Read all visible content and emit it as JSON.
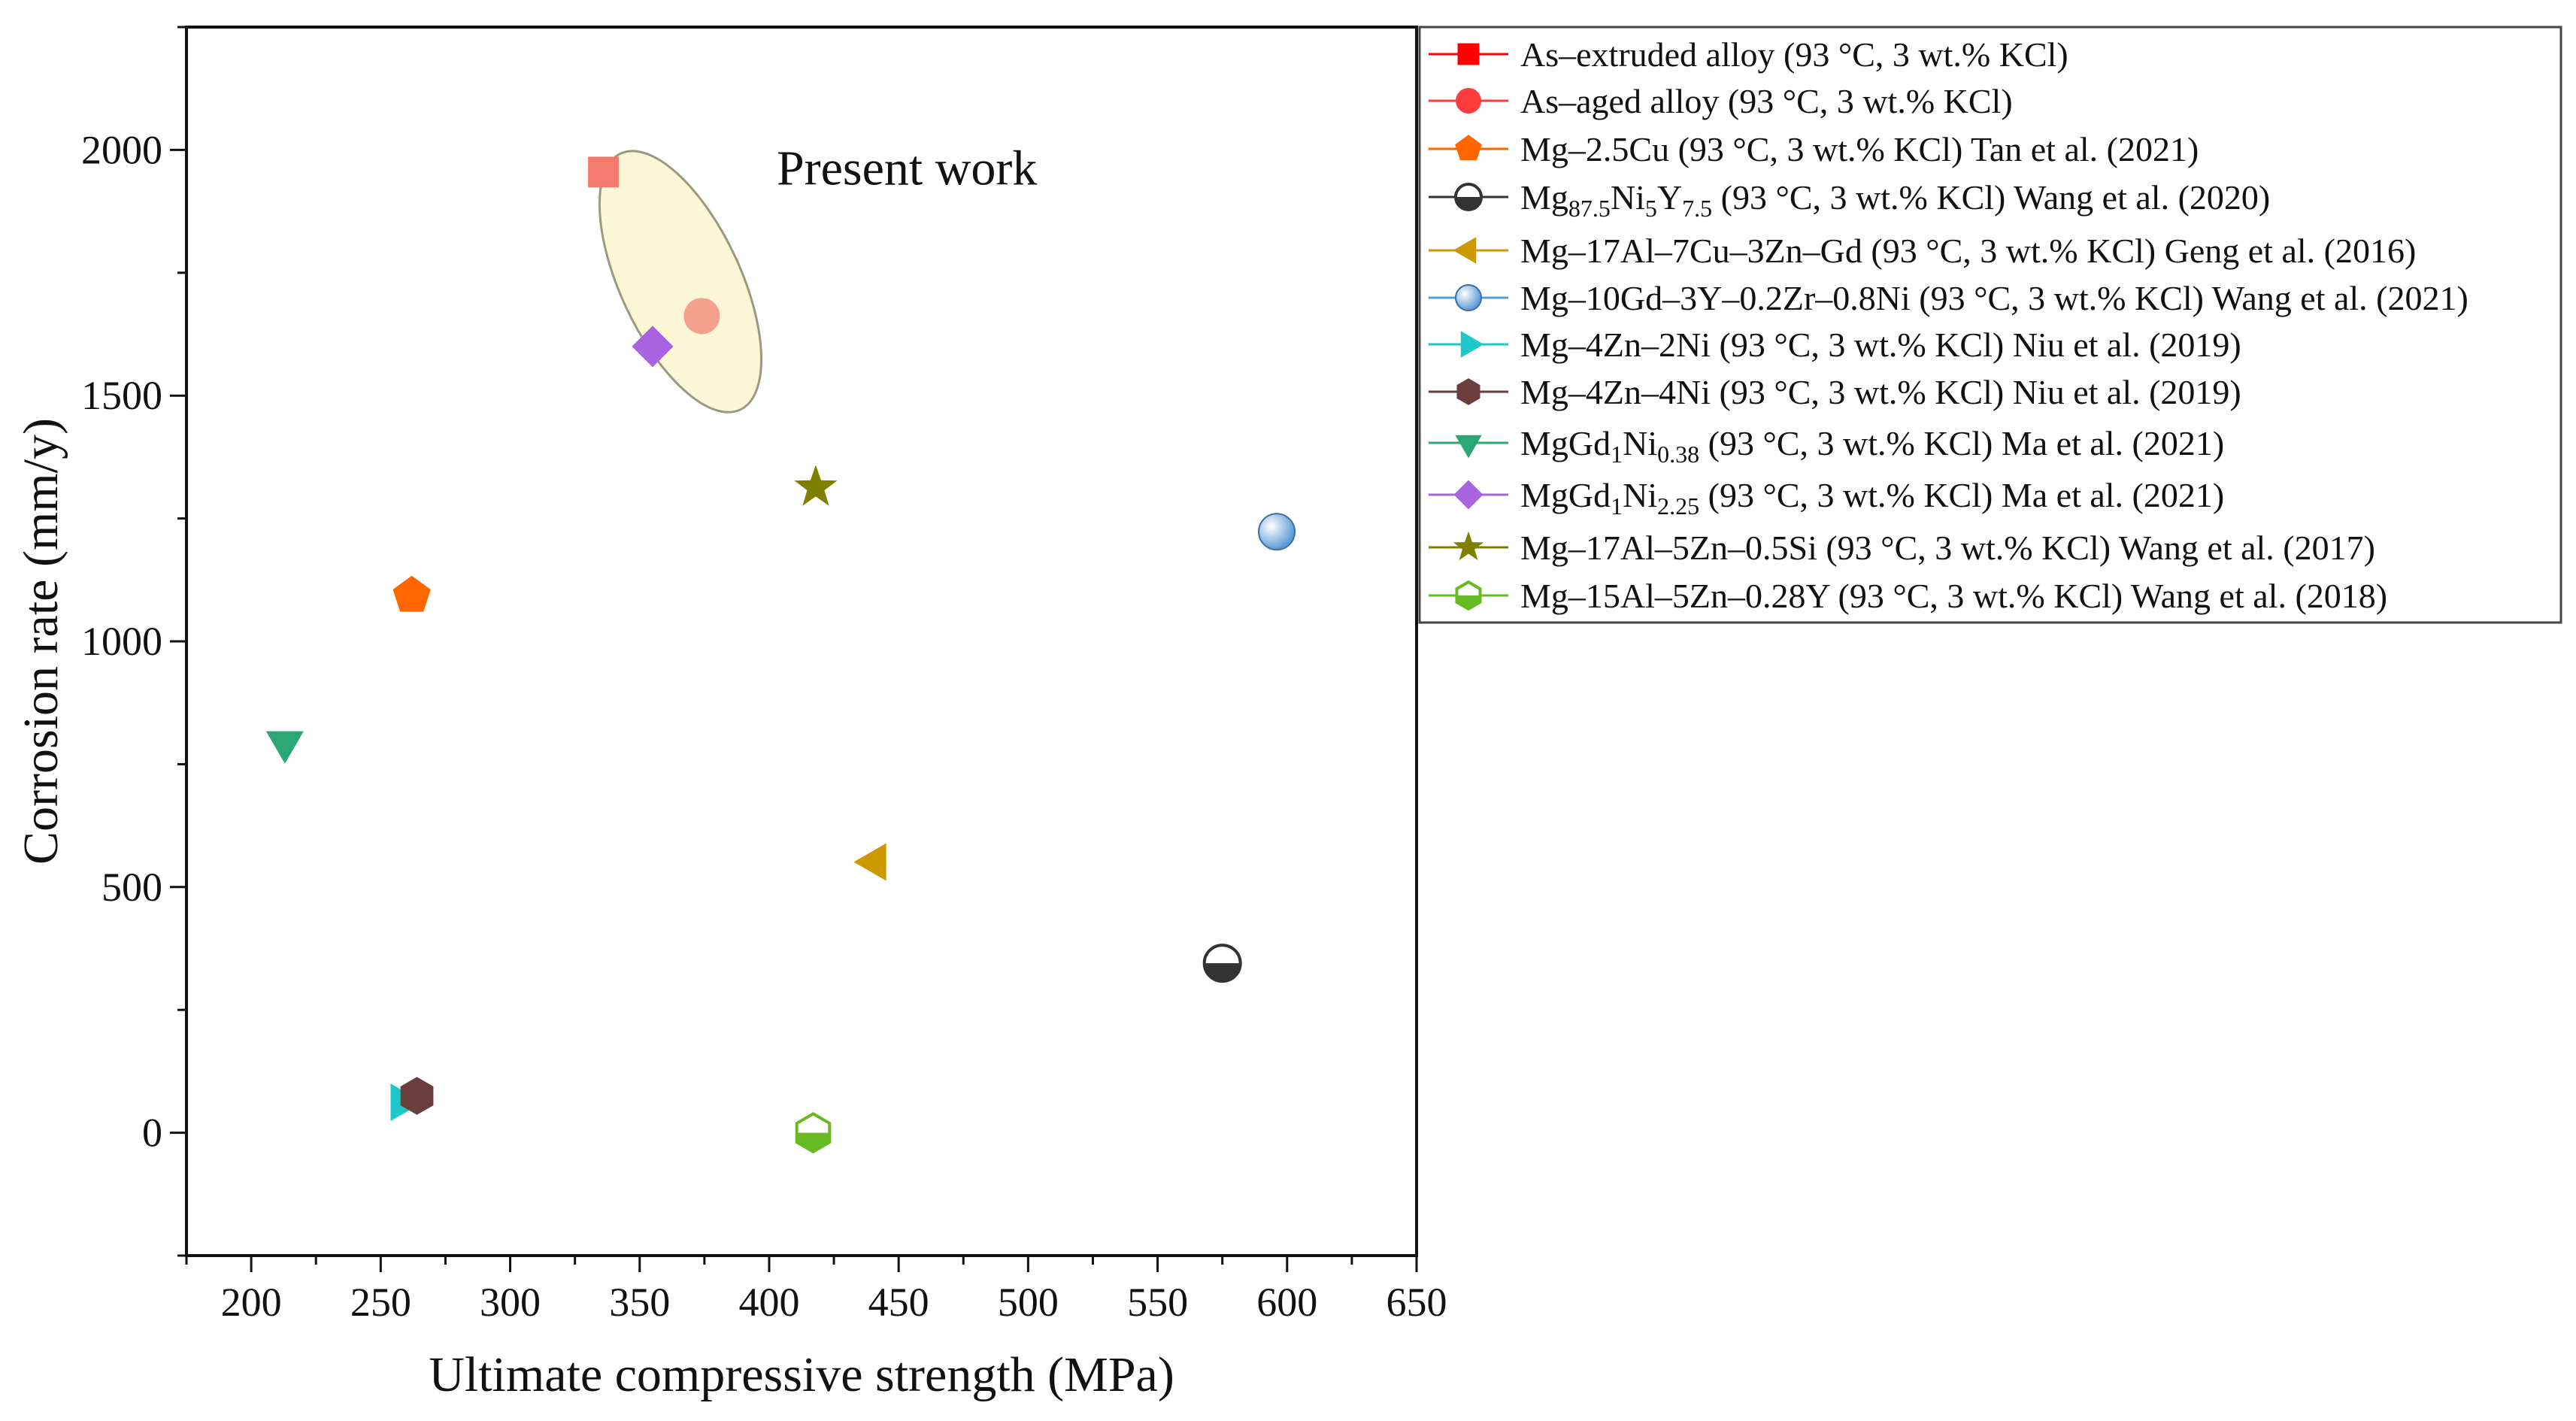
{
  "chart_data": {
    "type": "scatter",
    "title": "",
    "xlabel": "Ultimate compressive strength (MPa)",
    "ylabel": "Corrosion rate (mm/y)",
    "xlim": [
      175,
      650
    ],
    "ylim": [
      -250,
      2250
    ],
    "x_ticks": [
      "200",
      "250",
      "300",
      "350",
      "400",
      "450",
      "500",
      "550",
      "600",
      "650"
    ],
    "y_ticks": [
      "0",
      "500",
      "1000",
      "1500",
      "2000"
    ],
    "grid": false,
    "legend_position": "outside-right-top",
    "annotation": {
      "text": "Present work",
      "x": 400,
      "y": 1960
    },
    "series": [
      {
        "id": "s1",
        "label": "As–extruded alloy (93 °C, 3 wt.% KCl)",
        "marker": "square",
        "color": "#ff0000",
        "point_color": "#f47a6e",
        "x": [
          336
        ],
        "y": [
          1955
        ]
      },
      {
        "id": "s2",
        "label": "As–aged alloy (93 °C, 3 wt.% KCl)",
        "marker": "circle",
        "color": "#ff3b3b",
        "point_color": "#f5a08c",
        "x": [
          374
        ],
        "y": [
          1662
        ]
      },
      {
        "id": "s3",
        "label": "Mg–2.5Cu (93 °C, 3 wt.% KCl) Tan et al. (2021)",
        "marker": "pentagon",
        "color": "#ff6600",
        "point_color": "#ff6600",
        "x": [
          262
        ],
        "y": [
          1093
        ]
      },
      {
        "id": "s4",
        "label_parts": [
          {
            "t": "Mg"
          },
          {
            "t": "87.5",
            "sub": true
          },
          {
            "t": "Ni"
          },
          {
            "t": "5",
            "sub": true
          },
          {
            "t": "Y"
          },
          {
            "t": "7.5",
            "sub": true
          },
          {
            "t": " (93 °C, 3 wt.% KCl) Wang et al. (2020)"
          }
        ],
        "marker": "halfcircle",
        "color": "#333333",
        "point_color": "#333333",
        "x": [
          575
        ],
        "y": [
          345
        ]
      },
      {
        "id": "s5",
        "label": "Mg–17Al–7Cu–3Zn–Gd (93 °C, 3 wt.% KCl) Geng et al. (2016)",
        "marker": "triangle-left",
        "color": "#cc9900",
        "point_color": "#cc9900",
        "x": [
          441
        ],
        "y": [
          551
        ]
      },
      {
        "id": "s6",
        "label": "Mg–10Gd–3Y–0.2Zr–0.8Ni (93 °C, 3 wt.% KCl) Wang et al. (2021)",
        "marker": "sphere",
        "color": "#5b9bd5",
        "point_color": "#5b9bd5",
        "x": [
          596
        ],
        "y": [
          1223
        ]
      },
      {
        "id": "s7",
        "label": "Mg–4Zn–2Ni (93 °C, 3 wt.% KCl) Niu et al. (2019)",
        "marker": "triangle-right",
        "color": "#1ec8c8",
        "point_color": "#1ec8c8",
        "x": [
          258
        ],
        "y": [
          62
        ]
      },
      {
        "id": "s8",
        "label": "Mg–4Zn–4Ni (93 °C, 3 wt.% KCl) Niu et al. (2019)",
        "marker": "hexagon",
        "color": "#6b3e3e",
        "point_color": "#6b3e3e",
        "x": [
          264
        ],
        "y": [
          75
        ]
      },
      {
        "id": "s9",
        "label_parts": [
          {
            "t": "MgGd"
          },
          {
            "t": "1",
            "sub": true
          },
          {
            "t": "Ni"
          },
          {
            "t": "0.38",
            "sub": true
          },
          {
            "t": " (93 °C, 3 wt.% KCl) Ma et al. (2021)"
          }
        ],
        "marker": "triangle-down",
        "color": "#2aa874",
        "point_color": "#2aa874",
        "x": [
          213
        ],
        "y": [
          795
        ]
      },
      {
        "id": "s10",
        "label_parts": [
          {
            "t": "MgGd"
          },
          {
            "t": "1",
            "sub": true
          },
          {
            "t": "Ni"
          },
          {
            "t": "2.25",
            "sub": true
          },
          {
            "t": " (93 °C, 3 wt.% KCl) Ma et al. (2021)"
          }
        ],
        "marker": "diamond",
        "color": "#a864e0",
        "point_color": "#a864e0",
        "x": [
          355
        ],
        "y": [
          1600
        ]
      },
      {
        "id": "s11",
        "label": "Mg–17Al–5Zn–0.5Si (93 °C, 3 wt.% KCl) Wang et al. (2017)",
        "marker": "star",
        "color": "#808000",
        "point_color": "#808000",
        "x": [
          418
        ],
        "y": [
          1313
        ]
      },
      {
        "id": "s12",
        "label": "Mg–15Al–5Zn–0.28Y (93 °C, 3 wt.% KCl) Wang et al. (2018)",
        "marker": "hexagon-half",
        "color": "#66bb22",
        "point_color": "#66bb22",
        "x": [
          417
        ],
        "y": [
          0
        ]
      }
    ]
  }
}
